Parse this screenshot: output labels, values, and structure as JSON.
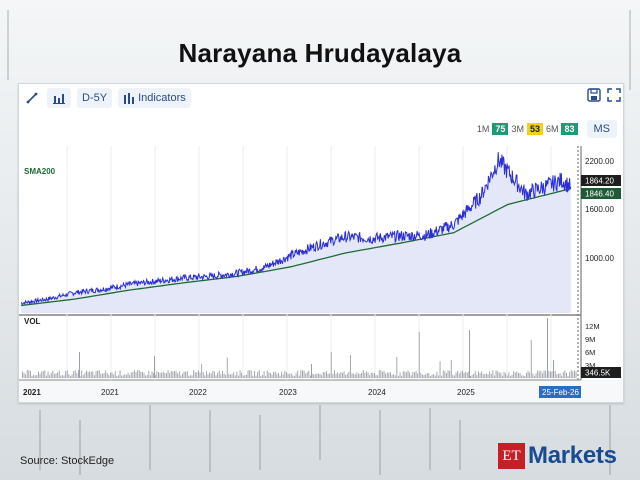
{
  "title": "Narayana Hrudayalaya",
  "toolbar": {
    "draw_icon": "trend-line-icon",
    "chart_type_icon": "bar-chart-icon",
    "period_label": "D-5Y",
    "indicators_label": "Indicators",
    "save_icon": "save-icon",
    "fullscreen_icon": "fullscreen-icon"
  },
  "ratings": [
    {
      "period": "1M",
      "score": "75",
      "color": "#1c9b76"
    },
    {
      "period": "3M",
      "score": "53",
      "color": "#f3d11a"
    },
    {
      "period": "6M",
      "score": "83",
      "color": "#1c9b76"
    }
  ],
  "ms_label": "MS",
  "chart": {
    "sma_label": "SMA200",
    "vol_label": "VOL",
    "price_ticks": [
      "2200.00",
      "1600.00",
      "1000.00"
    ],
    "price_tag": "1864.20",
    "sma_tag": "1846.40",
    "vol_ticks": [
      "12M",
      "9M",
      "6M",
      "3M"
    ],
    "vol_tag": "346.5K",
    "x_ticks": [
      "2021",
      "2021",
      "2022",
      "2023",
      "2024",
      "2025"
    ],
    "date_tag": "25-Feb-26",
    "colors": {
      "price": "#2b2fd6",
      "sma": "#1e6b34",
      "price_tag": "#1e1e1e",
      "sma_tag": "#1f5a36",
      "date_tag": "#2b6cc4"
    }
  },
  "chart_data": {
    "type": "line",
    "title": "Narayana Hrudayalaya",
    "series": [
      {
        "name": "",
        "x": [
          "2021-01",
          "2021-04",
          "2021-07",
          "2021-10",
          "2022-01",
          "2022-04",
          "2022-07",
          "2022-10",
          "2023-01",
          "2023-04",
          "2023-07",
          "2023-10",
          "2024-01",
          "2024-04",
          "2024-07",
          "2024-10",
          "2025-01",
          "2025-04",
          "2025-06",
          "2025-09",
          "2026-01",
          "2026-02"
        ],
        "values": [
          430,
          480,
          560,
          600,
          660,
          700,
          740,
          760,
          800,
          870,
          1020,
          1150,
          1250,
          1230,
          1260,
          1270,
          1400,
          1750,
          2200,
          1780,
          1950,
          1864
        ]
      },
      {
        "name": "SMA200",
        "x": [
          "2021-01",
          "2021-07",
          "2022-01",
          "2022-07",
          "2023-01",
          "2023-07",
          "2024-01",
          "2024-07",
          "2025-01",
          "2025-07",
          "2026-02"
        ],
        "values": [
          400,
          480,
          590,
          680,
          760,
          880,
          1050,
          1170,
          1300,
          1650,
          1846
        ]
      }
    ],
    "ylim": [
      400,
      2400
    ],
    "y_ticks": [
      1000,
      1600,
      2200
    ],
    "volume_axis": [
      "3M",
      "6M",
      "9M",
      "12M"
    ],
    "last_volume": "346.5K",
    "last_date": "25-Feb-26"
  },
  "source_label": "Source:  StockEdge",
  "logo": {
    "et": "ET",
    "markets": "Markets"
  }
}
